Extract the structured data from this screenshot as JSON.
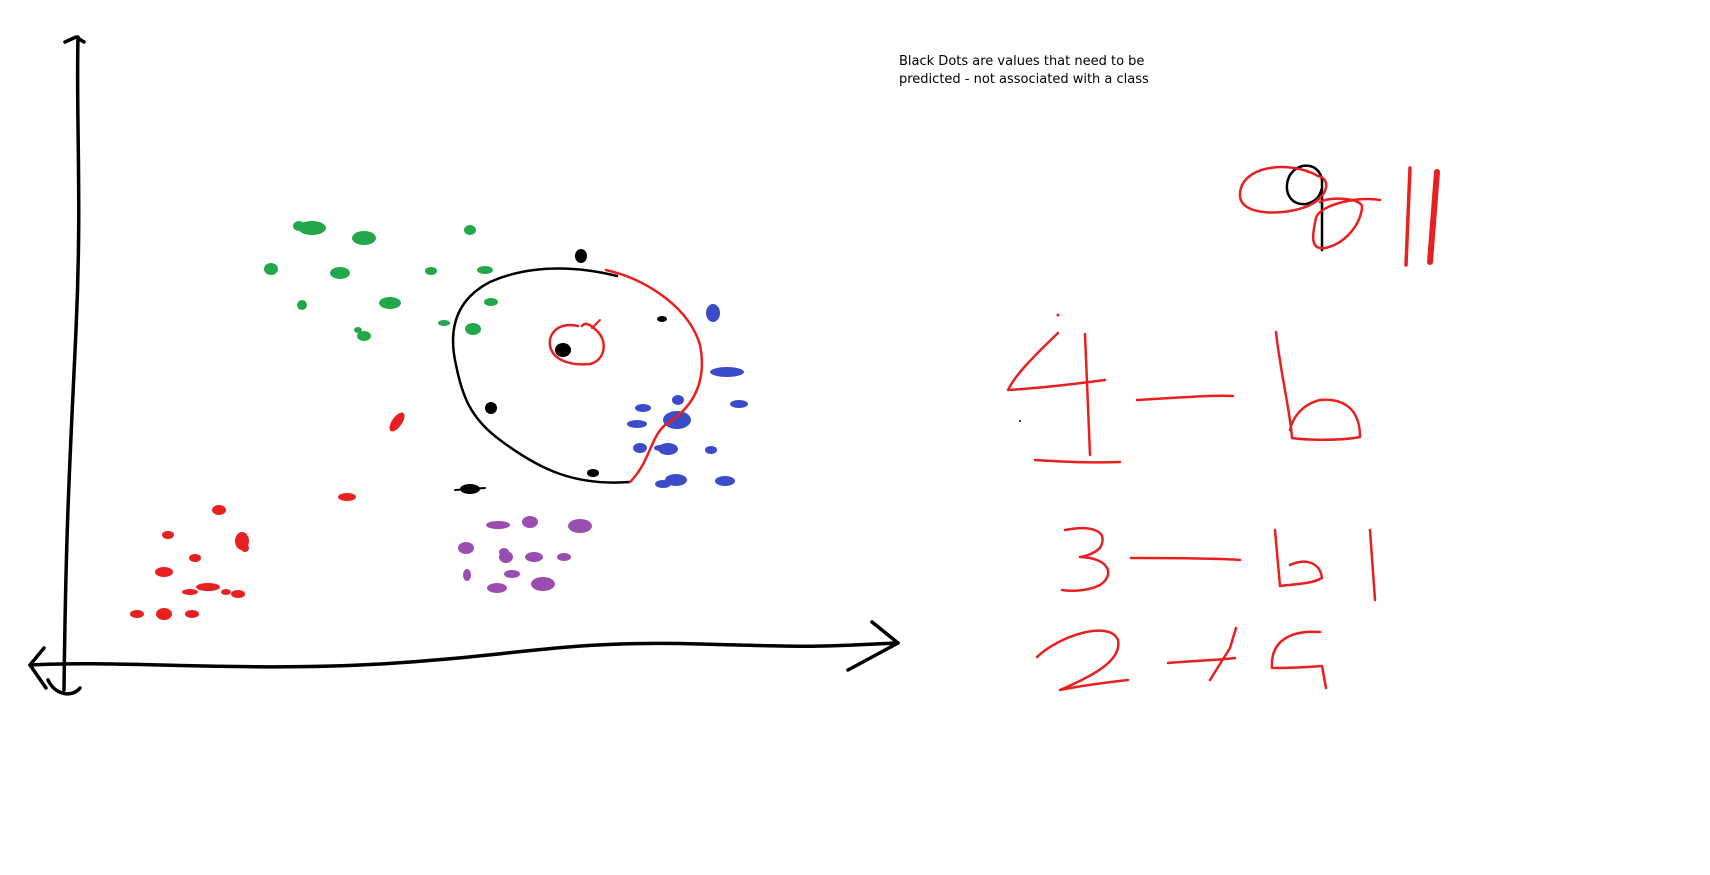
{
  "annotation": {
    "text": "Black Dots are values that need to be\npredicted  - not associated with a class"
  },
  "colors": {
    "axes": "#000000",
    "green": "#22a84a",
    "blue": "#3b4cc9",
    "red": "#e82020",
    "purple": "#9a4fb0",
    "black": "#000000"
  },
  "clusters": [
    {
      "name": "green",
      "color": "#22a84a",
      "count": 15
    },
    {
      "name": "blue",
      "color": "#3b4cc9",
      "count": 14
    },
    {
      "name": "red",
      "color": "#e82020",
      "count": 15
    },
    {
      "name": "purple",
      "color": "#9a4fb0",
      "count": 12
    },
    {
      "name": "black",
      "color": "#000000",
      "count": 6
    }
  ],
  "handwriting": {
    "top": "q = ll",
    "lines": [
      "4 — b",
      "3 — b l",
      "2 → G"
    ]
  }
}
